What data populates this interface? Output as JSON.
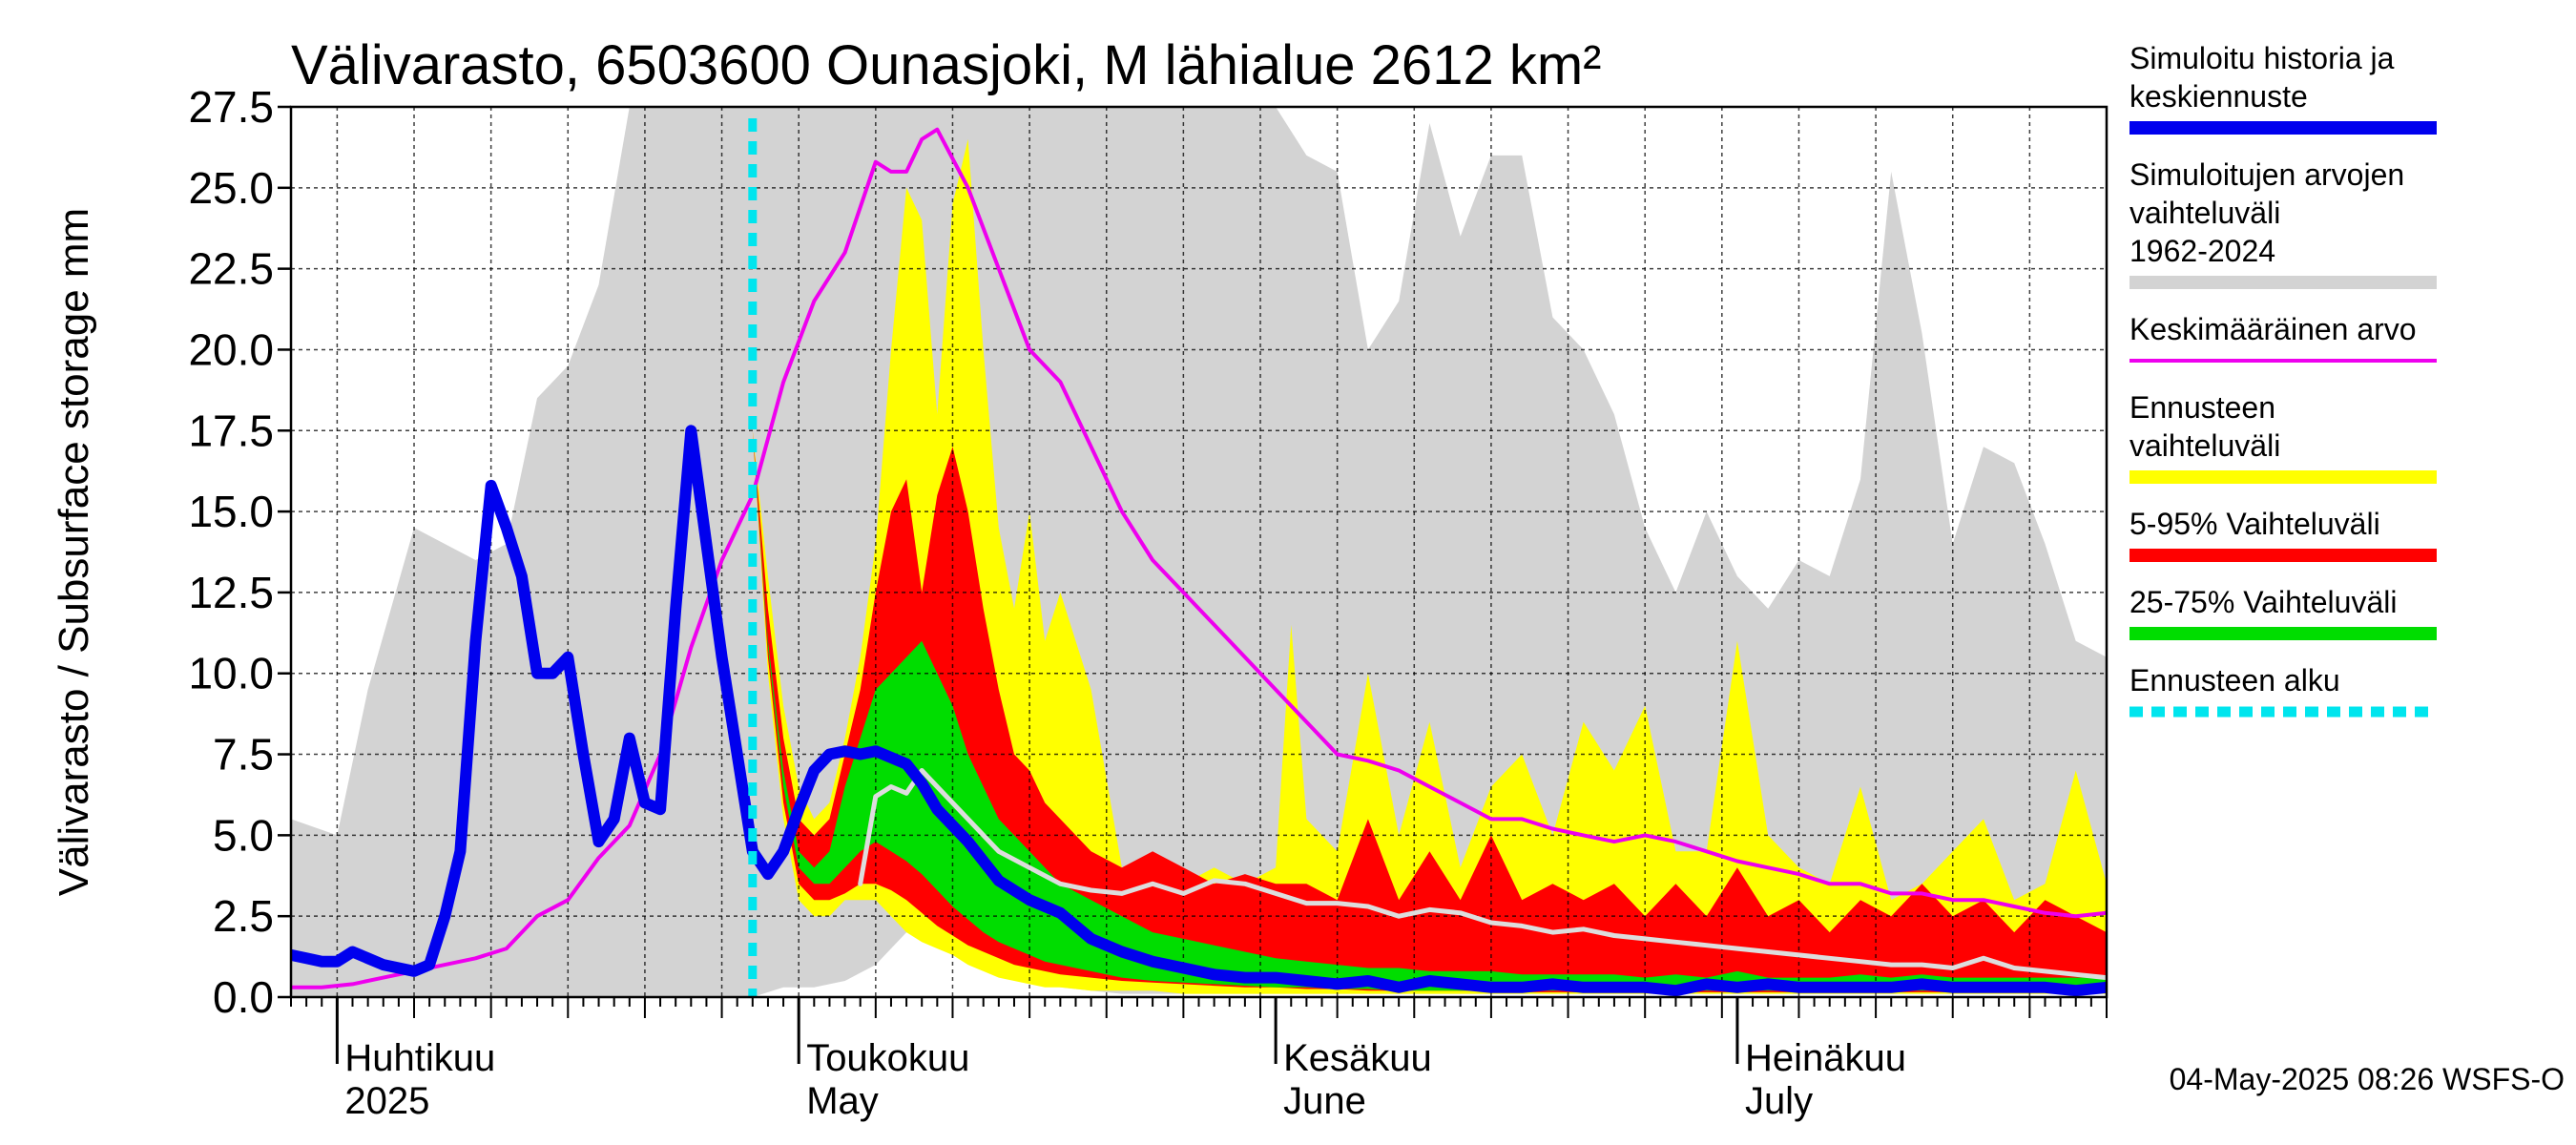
{
  "title": "Välivarasto, 6503600 Ounasjoki, M lähialue 2612 km²",
  "footer": "04-May-2025 08:26 WSFS-O",
  "colors": {
    "history": "#0000ee",
    "range_hist": "#d3d3d3",
    "mean": "#ee00ee",
    "forecast_range": "#ffff00",
    "p5_95": "#ff0000",
    "p25_75": "#00dd00",
    "forecast_start": "#00e5ee",
    "median_forecast": "#dddddd"
  },
  "legend": [
    {
      "label": "Simuloitu historia ja keskiennuste",
      "color": "#0000ee",
      "style": "solid"
    },
    {
      "label": "Simuloitujen arvojen vaihteluväli 1962-2024",
      "color": "#d3d3d3",
      "style": "solid"
    },
    {
      "label": "Keskimääräinen arvo",
      "color": "#ee00ee",
      "style": "thin"
    },
    {
      "label": "Ennusteen vaihteluväli",
      "color": "#ffff00",
      "style": "solid"
    },
    {
      "label": "5-95% Vaihteluväli",
      "color": "#ff0000",
      "style": "solid"
    },
    {
      "label": "25-75% Vaihteluväli",
      "color": "#00dd00",
      "style": "solid"
    },
    {
      "label": "Ennusteen alku",
      "color": "#00e5ee",
      "style": "dashed"
    }
  ],
  "chart_data": {
    "type": "area",
    "title": "Välivarasto, 6503600 Ounasjoki, M lähialue 2612 km²",
    "ylabel": "Välivarasto / Subsurface storage  mm",
    "ylim": [
      0,
      27.5
    ],
    "yticks": [
      0.0,
      2.5,
      5.0,
      7.5,
      10.0,
      12.5,
      15.0,
      17.5,
      20.0,
      22.5,
      25.0,
      27.5
    ],
    "ytick_labels": [
      "0.0",
      "2.5",
      "5.0",
      "7.5",
      "10.0",
      "12.5",
      "15.0",
      "17.5",
      "20.0",
      "22.5",
      "25.0",
      "27.5"
    ],
    "xlim": [
      0,
      118
    ],
    "x_unit": "days from 2025-03-29",
    "month_starts": [
      3,
      33,
      64,
      94,
      125
    ],
    "month_labels": [
      {
        "x": 3,
        "line1": "Huhtikuu",
        "line2": "2025"
      },
      {
        "x": 33,
        "line1": "Toukokuu",
        "line2": "May"
      },
      {
        "x": 64,
        "line1": "Kesäkuu",
        "line2": "June"
      },
      {
        "x": 94,
        "line1": "Heinäkuu",
        "line2": "July"
      }
    ],
    "grid": true,
    "forecast_start_x": 30,
    "series": [
      {
        "name": "Simuloitujen arvojen vaihteluväli 1962-2024",
        "kind": "band",
        "x": [
          0,
          3,
          5,
          8,
          12,
          14,
          16,
          18,
          20,
          22,
          24,
          26,
          28,
          30,
          32,
          34,
          36,
          38,
          40,
          42,
          44,
          46,
          48,
          50,
          52,
          54,
          56,
          58,
          60,
          62,
          64,
          66,
          68,
          70,
          72,
          74,
          76,
          78,
          80,
          82,
          84,
          86,
          88,
          90,
          92,
          94,
          96,
          98,
          100,
          102,
          104,
          106,
          108,
          110,
          112,
          114,
          116,
          118
        ],
        "upper": [
          5.5,
          5.0,
          9.5,
          14.5,
          13.5,
          14.0,
          18.5,
          19.5,
          22.0,
          27.5,
          27.5,
          27.5,
          27.5,
          27.5,
          27.5,
          27.5,
          27.5,
          27.5,
          27.5,
          27.5,
          27.5,
          27.5,
          27.5,
          27.5,
          27.5,
          27.5,
          27.5,
          27.5,
          27.5,
          27.5,
          27.5,
          26.0,
          25.5,
          20.0,
          21.5,
          27.0,
          23.5,
          26.0,
          26.0,
          21.0,
          20.0,
          18.0,
          14.5,
          12.5,
          15.0,
          13.0,
          12.0,
          13.5,
          13.0,
          16.0,
          25.5,
          20.5,
          14.0,
          17.0,
          16.5,
          14.0,
          11.0,
          10.5
        ],
        "lower": [
          0,
          0,
          0,
          0,
          0,
          0,
          0,
          0,
          0,
          0,
          0,
          0,
          0,
          0,
          0.3,
          0.3,
          0.5,
          1.0,
          2.0,
          3.5,
          2.0,
          1.0,
          0.5,
          0.3,
          0.2,
          0.1,
          0.1,
          0.1,
          0.1,
          0.1,
          0.1,
          0.1,
          0.1,
          0.1,
          0.1,
          0.1,
          0.1,
          0.1,
          0.1,
          0.1,
          0.1,
          0.1,
          0.1,
          0.1,
          0.1,
          0.1,
          0.1,
          0.1,
          0.1,
          0.1,
          0.1,
          0.1,
          0.1,
          0.1,
          0.1,
          0.1,
          0.1,
          0.1
        ]
      },
      {
        "name": "Ennusteen vaihteluväli",
        "kind": "band",
        "x": [
          30,
          31,
          32,
          33,
          34,
          35,
          36,
          37,
          38,
          39,
          40,
          41,
          42,
          43,
          44,
          45,
          46,
          47,
          48,
          49,
          50,
          52,
          54,
          56,
          58,
          60,
          62,
          64,
          65,
          66,
          68,
          70,
          72,
          74,
          76,
          78,
          80,
          82,
          84,
          86,
          88,
          90,
          92,
          94,
          96,
          98,
          100,
          102,
          104,
          106,
          108,
          110,
          112,
          114,
          116,
          118
        ],
        "upper": [
          17.5,
          13.0,
          9.0,
          6.5,
          5.5,
          6.0,
          8.0,
          10.5,
          14.0,
          20.0,
          25.0,
          24.0,
          18.0,
          24.5,
          26.5,
          20.0,
          14.5,
          12.0,
          15.0,
          11.0,
          12.5,
          9.5,
          4.0,
          4.0,
          3.5,
          4.0,
          3.5,
          4.0,
          11.5,
          5.5,
          4.5,
          10.0,
          5.0,
          8.5,
          4.0,
          6.5,
          7.5,
          5.0,
          8.5,
          7.0,
          9.0,
          4.5,
          4.5,
          11.0,
          5.0,
          4.0,
          3.5,
          6.5,
          3.0,
          3.5,
          4.5,
          5.5,
          3.0,
          3.5,
          7.0,
          3.5
        ],
        "lower": [
          17.5,
          10.0,
          5.5,
          3.0,
          2.5,
          2.5,
          3.0,
          3.0,
          3.0,
          2.5,
          2.0,
          1.7,
          1.5,
          1.3,
          1.0,
          0.8,
          0.6,
          0.5,
          0.4,
          0.3,
          0.3,
          0.2,
          0.2,
          0.2,
          0.1,
          0.1,
          0.1,
          0.1,
          0.1,
          0.1,
          0.1,
          0.1,
          0.1,
          0.1,
          0.1,
          0.1,
          0.1,
          0.1,
          0.1,
          0.1,
          0.1,
          0.1,
          0.1,
          0.1,
          0.1,
          0.1,
          0.1,
          0.1,
          0.1,
          0.1,
          0.1,
          0.1,
          0.1,
          0.1,
          0.1,
          0.1
        ]
      },
      {
        "name": "5-95% Vaihteluväli",
        "kind": "band",
        "x": [
          30,
          31,
          32,
          33,
          34,
          35,
          36,
          37,
          38,
          39,
          40,
          41,
          42,
          43,
          44,
          45,
          46,
          47,
          48,
          49,
          50,
          52,
          54,
          56,
          58,
          60,
          62,
          64,
          66,
          68,
          70,
          72,
          74,
          76,
          78,
          80,
          82,
          84,
          86,
          88,
          90,
          92,
          94,
          96,
          98,
          100,
          102,
          104,
          106,
          108,
          110,
          112,
          114,
          116,
          118
        ],
        "upper": [
          17.5,
          12.0,
          8.0,
          5.5,
          5.0,
          5.5,
          7.5,
          9.5,
          12.5,
          15.0,
          16.0,
          12.5,
          15.5,
          17.0,
          15.0,
          12.0,
          9.5,
          7.5,
          7.0,
          6.0,
          5.5,
          4.5,
          4.0,
          4.5,
          4.0,
          3.5,
          3.8,
          3.5,
          3.5,
          3.0,
          5.5,
          3.0,
          4.5,
          3.0,
          5.0,
          3.0,
          3.5,
          3.0,
          3.5,
          2.5,
          3.5,
          2.5,
          4.0,
          2.5,
          3.0,
          2.0,
          3.0,
          2.5,
          3.5,
          2.5,
          3.0,
          2.0,
          3.0,
          2.5,
          2.0
        ],
        "lower": [
          17.5,
          10.5,
          6.0,
          3.5,
          3.0,
          3.0,
          3.2,
          3.5,
          3.5,
          3.3,
          3.0,
          2.6,
          2.2,
          1.9,
          1.6,
          1.4,
          1.2,
          1.0,
          0.9,
          0.8,
          0.7,
          0.6,
          0.5,
          0.45,
          0.4,
          0.35,
          0.3,
          0.3,
          0.25,
          0.25,
          0.2,
          0.2,
          0.2,
          0.2,
          0.2,
          0.15,
          0.15,
          0.15,
          0.15,
          0.15,
          0.15,
          0.15,
          0.15,
          0.15,
          0.15,
          0.15,
          0.15,
          0.15,
          0.15,
          0.15,
          0.15,
          0.15,
          0.15,
          0.15,
          0.15
        ]
      },
      {
        "name": "25-75% Vaihteluväli",
        "kind": "band",
        "x": [
          30,
          31,
          32,
          33,
          34,
          35,
          36,
          37,
          38,
          39,
          40,
          41,
          42,
          43,
          44,
          45,
          46,
          47,
          48,
          49,
          50,
          52,
          54,
          56,
          58,
          60,
          62,
          64,
          66,
          68,
          70,
          72,
          74,
          76,
          78,
          80,
          82,
          84,
          86,
          88,
          90,
          92,
          94,
          96,
          98,
          100,
          102,
          104,
          106,
          108,
          110,
          112,
          114,
          116,
          118
        ],
        "upper": [
          17.5,
          11.0,
          7.0,
          4.5,
          4.0,
          4.5,
          6.5,
          8.0,
          9.5,
          10.0,
          10.5,
          11.0,
          10.0,
          9.0,
          7.5,
          6.5,
          5.5,
          5.0,
          4.5,
          4.0,
          3.5,
          3.0,
          2.5,
          2.0,
          1.8,
          1.6,
          1.4,
          1.2,
          1.1,
          1.0,
          0.9,
          0.9,
          0.8,
          0.8,
          0.8,
          0.7,
          0.7,
          0.7,
          0.7,
          0.6,
          0.7,
          0.6,
          0.8,
          0.6,
          0.6,
          0.6,
          0.7,
          0.6,
          0.7,
          0.6,
          0.6,
          0.6,
          0.6,
          0.6,
          0.6
        ],
        "lower": [
          17.5,
          10.8,
          6.5,
          4.0,
          3.5,
          3.5,
          4.0,
          4.5,
          4.8,
          4.5,
          4.2,
          3.8,
          3.3,
          2.8,
          2.4,
          2.0,
          1.7,
          1.5,
          1.3,
          1.1,
          1.0,
          0.8,
          0.6,
          0.5,
          0.45,
          0.4,
          0.35,
          0.3,
          0.3,
          0.25,
          0.25,
          0.2,
          0.2,
          0.2,
          0.2,
          0.2,
          0.2,
          0.2,
          0.2,
          0.2,
          0.2,
          0.2,
          0.2,
          0.2,
          0.2,
          0.2,
          0.2,
          0.2,
          0.2,
          0.2,
          0.2,
          0.2,
          0.2,
          0.2,
          0.2
        ]
      },
      {
        "name": "Keskimääräinen arvo",
        "kind": "line",
        "x": [
          0,
          2,
          4,
          6,
          8,
          10,
          12,
          14,
          16,
          18,
          20,
          22,
          24,
          26,
          28,
          30,
          32,
          34,
          36,
          38,
          39,
          40,
          41,
          42,
          44,
          46,
          48,
          50,
          52,
          54,
          56,
          58,
          60,
          62,
          64,
          66,
          68,
          70,
          72,
          74,
          76,
          78,
          80,
          82,
          84,
          86,
          88,
          90,
          92,
          94,
          96,
          98,
          100,
          102,
          104,
          106,
          108,
          110,
          112,
          114,
          116,
          118
        ],
        "y": [
          0.3,
          0.3,
          0.4,
          0.6,
          0.8,
          1.0,
          1.2,
          1.5,
          2.5,
          3.0,
          4.3,
          5.3,
          7.5,
          10.8,
          13.5,
          15.5,
          19.0,
          21.5,
          23.0,
          25.8,
          25.5,
          25.5,
          26.5,
          26.8,
          25.0,
          22.5,
          20.0,
          19.0,
          17.0,
          15.0,
          13.5,
          12.5,
          11.5,
          10.5,
          9.5,
          8.5,
          7.5,
          7.3,
          7.0,
          6.5,
          6.0,
          5.5,
          5.5,
          5.2,
          5.0,
          4.8,
          5.0,
          4.8,
          4.5,
          4.2,
          4.0,
          3.8,
          3.5,
          3.5,
          3.2,
          3.2,
          3.0,
          3.0,
          2.8,
          2.6,
          2.5,
          2.6
        ]
      },
      {
        "name": "Mediaani ennuste",
        "kind": "line",
        "x": [
          37,
          38,
          39,
          40,
          41,
          42,
          44,
          46,
          48,
          50,
          52,
          54,
          56,
          58,
          60,
          62,
          64,
          66,
          68,
          70,
          72,
          74,
          76,
          78,
          80,
          82,
          84,
          86,
          88,
          90,
          92,
          94,
          96,
          98,
          100,
          102,
          104,
          106,
          108,
          110,
          112,
          114,
          116,
          118
        ],
        "y": [
          3.5,
          6.2,
          6.5,
          6.3,
          7.0,
          6.5,
          5.5,
          4.5,
          4.0,
          3.5,
          3.3,
          3.2,
          3.5,
          3.2,
          3.6,
          3.5,
          3.2,
          2.9,
          2.9,
          2.8,
          2.5,
          2.7,
          2.6,
          2.3,
          2.2,
          2.0,
          2.1,
          1.9,
          1.8,
          1.7,
          1.6,
          1.5,
          1.4,
          1.3,
          1.2,
          1.1,
          1.0,
          1.0,
          0.9,
          1.2,
          0.9,
          0.8,
          0.7,
          0.6
        ]
      },
      {
        "name": "Simuloitu historia ja keskiennuste",
        "kind": "line",
        "x": [
          0,
          1,
          2,
          3,
          4,
          5,
          6,
          7,
          8,
          9,
          10,
          11,
          12,
          13,
          14,
          15,
          16,
          17,
          18,
          19,
          20,
          21,
          22,
          23,
          24,
          25,
          26,
          27,
          28,
          29,
          30,
          31,
          32,
          33,
          34,
          35,
          36,
          37,
          38,
          39,
          40,
          41,
          42,
          44,
          46,
          48,
          50,
          52,
          54,
          56,
          58,
          60,
          62,
          64,
          66,
          68,
          70,
          72,
          74,
          76,
          78,
          80,
          82,
          84,
          86,
          88,
          90,
          92,
          94,
          96,
          98,
          100,
          102,
          104,
          106,
          108,
          110,
          112,
          114,
          116,
          118
        ],
        "y": [
          1.3,
          1.2,
          1.1,
          1.1,
          1.4,
          1.2,
          1.0,
          0.9,
          0.8,
          1.0,
          2.5,
          4.5,
          11.0,
          15.8,
          14.5,
          13.0,
          10.0,
          10.0,
          10.5,
          7.5,
          4.8,
          5.5,
          8.0,
          6.0,
          5.8,
          12.0,
          17.5,
          14.0,
          10.5,
          7.5,
          4.5,
          3.8,
          4.5,
          5.8,
          7.0,
          7.5,
          7.6,
          7.5,
          7.6,
          7.4,
          7.2,
          6.6,
          5.8,
          4.8,
          3.6,
          3.0,
          2.6,
          1.8,
          1.4,
          1.1,
          0.9,
          0.7,
          0.6,
          0.6,
          0.5,
          0.4,
          0.5,
          0.3,
          0.5,
          0.4,
          0.3,
          0.3,
          0.4,
          0.3,
          0.3,
          0.3,
          0.2,
          0.4,
          0.3,
          0.4,
          0.3,
          0.3,
          0.3,
          0.3,
          0.4,
          0.3,
          0.3,
          0.3,
          0.3,
          0.2,
          0.3
        ]
      }
    ]
  }
}
